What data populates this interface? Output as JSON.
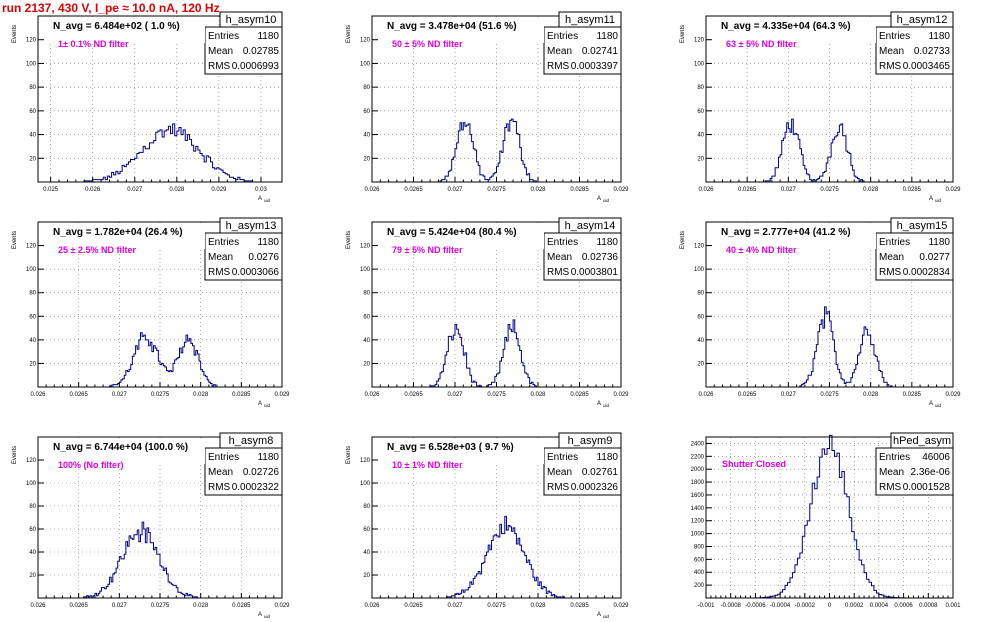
{
  "canvas_title": "run 2137,   430 V, I_pe ≈ 10.0 nA, 120 Hz",
  "colors": {
    "title": "#e00000",
    "histogram": "#00008b",
    "annotation": "#e000e0"
  },
  "chart_data": [
    {
      "type": "histogram",
      "name": "h_asym10",
      "xlim": [
        0.0247,
        0.0305
      ],
      "ylim": [
        0,
        140
      ],
      "xticks": [
        0.025,
        0.026,
        0.027,
        0.028,
        0.029,
        0.03
      ],
      "xtick_labels": [
        "0.025",
        "0.026",
        "0.027",
        "0.028",
        "0.029",
        "0.03"
      ],
      "yticks": [
        20,
        40,
        60,
        80,
        100,
        120
      ],
      "xlabel": "A_uid",
      "ylabel": "Events",
      "nav_text": "N_avg = 6.484e+02 ( 1.0 %)",
      "filter_text": "1± 0.1% ND filter",
      "stats": {
        "Entries": "1180",
        "Mean": "0.02785",
        "RMS": "0.0006993"
      },
      "peaks": [
        {
          "mu": 0.02785,
          "sigma": 0.00068,
          "amp": 44
        }
      ],
      "bin_width": 5e-05,
      "grid": true
    },
    {
      "type": "histogram",
      "name": "h_asym11",
      "xlim": [
        0.026,
        0.029
      ],
      "ylim": [
        0,
        140
      ],
      "xticks": [
        0.026,
        0.0265,
        0.027,
        0.0275,
        0.028,
        0.0285,
        0.029
      ],
      "xtick_labels": [
        "0.026",
        "0.0265",
        "0.027",
        "0.0275",
        "0.028",
        "0.0285",
        "0.029"
      ],
      "yticks": [
        20,
        40,
        60,
        80,
        100,
        120
      ],
      "xlabel": "A_uid",
      "ylabel": "Events",
      "nav_text": "N_avg = 3.478e+04 (51.6 %)",
      "filter_text": "50 ± 5% ND filter",
      "stats": {
        "Entries": "1180",
        "Mean": "0.02741",
        "RMS": "0.0003397"
      },
      "peaks": [
        {
          "mu": 0.02712,
          "sigma": 0.0001,
          "amp": 52
        },
        {
          "mu": 0.02768,
          "sigma": 0.0001,
          "amp": 52
        }
      ],
      "bin_width": 2e-05,
      "grid": true
    },
    {
      "type": "histogram",
      "name": "h_asym12",
      "xlim": [
        0.026,
        0.029
      ],
      "ylim": [
        0,
        140
      ],
      "xticks": [
        0.026,
        0.0265,
        0.027,
        0.0275,
        0.028,
        0.0285,
        0.029
      ],
      "xtick_labels": [
        "0.026",
        "0.0265",
        "0.027",
        "0.0275",
        "0.028",
        "0.0285",
        "0.029"
      ],
      "yticks": [
        20,
        40,
        60,
        80,
        100,
        120
      ],
      "xlabel": "A_uid",
      "ylabel": "Events",
      "nav_text": "N_avg = 4.335e+04 (64.3 %)",
      "filter_text": "63 ± 5% ND filter",
      "stats": {
        "Entries": "1180",
        "Mean": "0.02733",
        "RMS": "0.0003465"
      },
      "peaks": [
        {
          "mu": 0.02703,
          "sigma": 0.0001,
          "amp": 50
        },
        {
          "mu": 0.02762,
          "sigma": 0.0001,
          "amp": 48
        }
      ],
      "bin_width": 2e-05,
      "grid": true
    },
    {
      "type": "histogram",
      "name": "h_asym13",
      "xlim": [
        0.026,
        0.029
      ],
      "ylim": [
        0,
        140
      ],
      "xticks": [
        0.026,
        0.0265,
        0.027,
        0.0275,
        0.028,
        0.0285,
        0.029
      ],
      "xtick_labels": [
        "0.026",
        "0.0265",
        "0.027",
        "0.0275",
        "0.028",
        "0.0285",
        "0.029"
      ],
      "yticks": [
        20,
        40,
        60,
        80,
        100,
        120
      ],
      "xlabel": "A_uid",
      "ylabel": "Events",
      "nav_text": "N_avg = 1.782e+04 (26.4 %)",
      "filter_text": "25 ± 2.5% ND filter",
      "stats": {
        "Entries": "1180",
        "Mean": "0.0276",
        "RMS": "0.0003066"
      },
      "peaks": [
        {
          "mu": 0.02733,
          "sigma": 0.00015,
          "amp": 42
        },
        {
          "mu": 0.02785,
          "sigma": 0.00012,
          "amp": 42
        }
      ],
      "bin_width": 2e-05,
      "grid": true
    },
    {
      "type": "histogram",
      "name": "h_asym14",
      "xlim": [
        0.026,
        0.029
      ],
      "ylim": [
        0,
        140
      ],
      "xticks": [
        0.026,
        0.0265,
        0.027,
        0.0275,
        0.028,
        0.0285,
        0.029
      ],
      "xtick_labels": [
        "0.026",
        "0.0265",
        "0.027",
        "0.0275",
        "0.028",
        "0.0285",
        "0.029"
      ],
      "yticks": [
        20,
        40,
        60,
        80,
        100,
        120
      ],
      "xlabel": "A_uid",
      "ylabel": "Events",
      "nav_text": "N_avg = 5.424e+04 (80.4 %)",
      "filter_text": "79 ± 5% ND filter",
      "stats": {
        "Entries": "1180",
        "Mean": "0.02736",
        "RMS": "0.0003801"
      },
      "peaks": [
        {
          "mu": 0.02701,
          "sigma": 0.0001,
          "amp": 50
        },
        {
          "mu": 0.02769,
          "sigma": 0.0001,
          "amp": 50
        }
      ],
      "bin_width": 2e-05,
      "grid": true
    },
    {
      "type": "histogram",
      "name": "h_asym15",
      "xlim": [
        0.026,
        0.029
      ],
      "ylim": [
        0,
        140
      ],
      "xticks": [
        0.026,
        0.0265,
        0.027,
        0.0275,
        0.028,
        0.0285,
        0.029
      ],
      "xtick_labels": [
        "0.026",
        "0.0265",
        "0.027",
        "0.0275",
        "0.028",
        "0.0285",
        "0.029"
      ],
      "yticks": [
        20,
        40,
        60,
        80,
        100,
        120
      ],
      "xlabel": "A_uid",
      "ylabel": "Events",
      "nav_text": "N_avg = 2.777e+04 (41.2 %)",
      "filter_text": "40 ± 4% ND filter",
      "stats": {
        "Entries": "1180",
        "Mean": "0.0277",
        "RMS": "0.0002834"
      },
      "peaks": [
        {
          "mu": 0.02745,
          "sigma": 0.0001,
          "amp": 60
        },
        {
          "mu": 0.02796,
          "sigma": 0.0001,
          "amp": 48
        }
      ],
      "bin_width": 2e-05,
      "grid": true
    },
    {
      "type": "histogram",
      "name": "h_asym8",
      "xlim": [
        0.026,
        0.029
      ],
      "ylim": [
        0,
        140
      ],
      "xticks": [
        0.026,
        0.0265,
        0.027,
        0.0275,
        0.028,
        0.0285,
        0.029
      ],
      "xtick_labels": [
        "0.026",
        "0.0265",
        "0.027",
        "0.0275",
        "0.028",
        "0.0285",
        "0.029"
      ],
      "yticks": [
        20,
        40,
        60,
        80,
        100,
        120
      ],
      "xlabel": "A_uid",
      "ylabel": "Events",
      "nav_text": "N_avg = 6.744e+04 (100.0 %)",
      "filter_text": "100% (No filter)",
      "stats": {
        "Entries": "1180",
        "Mean": "0.02726",
        "RMS": "0.0002322"
      },
      "peaks": [
        {
          "mu": 0.02726,
          "sigma": 0.00023,
          "amp": 58
        }
      ],
      "bin_width": 2e-05,
      "grid": true
    },
    {
      "type": "histogram",
      "name": "h_asym9",
      "xlim": [
        0.026,
        0.029
      ],
      "ylim": [
        0,
        140
      ],
      "xticks": [
        0.026,
        0.0265,
        0.027,
        0.0275,
        0.028,
        0.0285,
        0.029
      ],
      "xtick_labels": [
        "0.026",
        "0.0265",
        "0.027",
        "0.0275",
        "0.028",
        "0.0285",
        "0.029"
      ],
      "yticks": [
        20,
        40,
        60,
        80,
        100,
        120
      ],
      "xlabel": "A_uid",
      "ylabel": "Events",
      "nav_text": "N_avg = 6.528e+03 ( 9.7 %)",
      "filter_text": "10 ± 1% ND filter",
      "stats": {
        "Entries": "1180",
        "Mean": "0.02761",
        "RMS": "0.0002326"
      },
      "peaks": [
        {
          "mu": 0.02761,
          "sigma": 0.00023,
          "amp": 62
        }
      ],
      "bin_width": 2e-05,
      "grid": true
    },
    {
      "type": "histogram",
      "name": "hPed_asym",
      "xlim": [
        -0.001,
        0.001
      ],
      "ylim": [
        0,
        2500
      ],
      "xticks": [
        -0.001,
        -0.0008,
        -0.0006,
        -0.0004,
        -0.0002,
        0,
        0.0002,
        0.0004,
        0.0006,
        0.0008,
        0.001
      ],
      "xtick_labels": [
        "-0.001",
        "-0.0008",
        "-0.0006",
        "-0.0004",
        "-0.0002",
        "0",
        "0.0002",
        "0.0004",
        "0.0006",
        "0.0008",
        "0.001"
      ],
      "yticks": [
        200,
        400,
        600,
        800,
        1000,
        1200,
        1400,
        1600,
        1800,
        2000,
        2200,
        2400
      ],
      "xlabel": "",
      "ylabel": "",
      "nav_text": "",
      "filter_text": "Shutter Closed",
      "stats": {
        "Entries": "46006",
        "Mean": "2.36e-06",
        "RMS": "0.0001528"
      },
      "peaks": [
        {
          "mu": 0.0,
          "sigma": 0.000153,
          "amp": 2370
        }
      ],
      "bin_width": 2e-05,
      "grid": true
    }
  ]
}
